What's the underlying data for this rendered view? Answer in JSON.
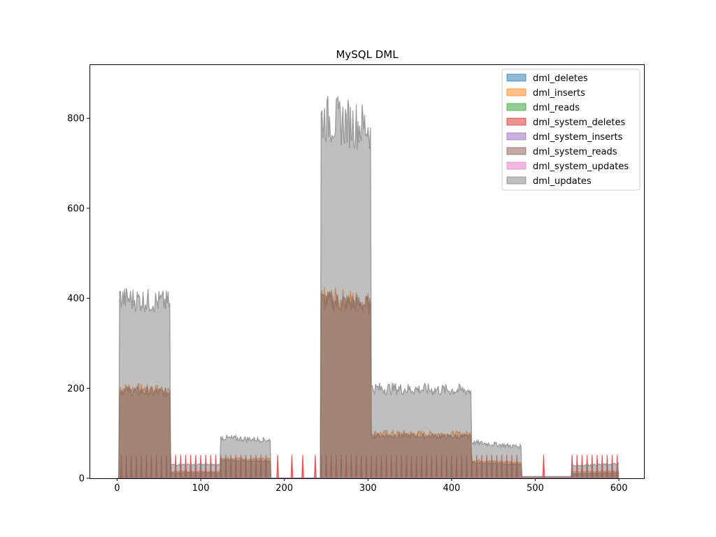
{
  "chart_data": {
    "type": "area",
    "title": "MySQL DML",
    "xlabel": "",
    "ylabel": "",
    "xlim": [
      -33,
      630
    ],
    "ylim": [
      0,
      920
    ],
    "x_ticks": [
      0,
      100,
      200,
      300,
      400,
      500,
      600
    ],
    "y_ticks": [
      0,
      200,
      400,
      600,
      800
    ],
    "grid": false,
    "legend_position": "top-right",
    "legend": [
      "dml_deletes",
      "dml_inserts",
      "dml_reads",
      "dml_system_deletes",
      "dml_system_inserts",
      "dml_system_reads",
      "dml_system_updates",
      "dml_updates"
    ],
    "series_colors": {
      "dml_deletes": "#1f77b4",
      "dml_inserts": "#ff7f0e",
      "dml_reads": "#2ca02c",
      "dml_system_deletes": "#d62728",
      "dml_system_inserts": "#9467bd",
      "dml_system_reads": "#8c564b",
      "dml_system_updates": "#e377c2",
      "dml_updates": "#7f7f7f"
    },
    "series_segments": {
      "dml_updates": [
        [
          0,
          0
        ],
        [
          2,
          0
        ],
        [
          3,
          400
        ],
        [
          63,
          390
        ],
        [
          64,
          30
        ],
        [
          123,
          30
        ],
        [
          124,
          90
        ],
        [
          183,
          85
        ],
        [
          184,
          0
        ],
        [
          243,
          0
        ],
        [
          244,
          800
        ],
        [
          303,
          780
        ],
        [
          304,
          200
        ],
        [
          423,
          195
        ],
        [
          424,
          80
        ],
        [
          483,
          70
        ],
        [
          484,
          4
        ],
        [
          543,
          4
        ],
        [
          544,
          28
        ],
        [
          600,
          32
        ]
      ],
      "dml_inserts": [
        [
          0,
          0
        ],
        [
          2,
          0
        ],
        [
          3,
          200
        ],
        [
          63,
          195
        ],
        [
          64,
          15
        ],
        [
          123,
          15
        ],
        [
          124,
          45
        ],
        [
          183,
          42
        ],
        [
          184,
          0
        ],
        [
          243,
          0
        ],
        [
          244,
          400
        ],
        [
          303,
          390
        ],
        [
          304,
          100
        ],
        [
          423,
          98
        ],
        [
          424,
          40
        ],
        [
          483,
          35
        ],
        [
          484,
          2
        ],
        [
          543,
          2
        ],
        [
          544,
          14
        ],
        [
          600,
          16
        ]
      ],
      "dml_system_reads": [
        [
          0,
          0
        ],
        [
          2,
          0
        ],
        [
          3,
          195
        ],
        [
          63,
          190
        ],
        [
          64,
          12
        ],
        [
          123,
          12
        ],
        [
          124,
          40
        ],
        [
          183,
          38
        ],
        [
          184,
          0
        ],
        [
          243,
          0
        ],
        [
          244,
          395
        ],
        [
          303,
          385
        ],
        [
          304,
          95
        ],
        [
          423,
          92
        ],
        [
          424,
          35
        ],
        [
          483,
          30
        ],
        [
          484,
          0
        ],
        [
          543,
          0
        ],
        [
          544,
          10
        ],
        [
          600,
          12
        ]
      ],
      "dml_system_deletes_spikes": {
        "peak": 52,
        "ranges": [
          [
            5,
            63
          ],
          [
            64,
            183
          ],
          [
            244,
            423
          ],
          [
            424,
            483
          ],
          [
            544,
            600
          ]
        ],
        "period": 6,
        "isolated": [
          192,
          209,
          222,
          237,
          510
        ]
      },
      "dml_system_updates": [
        [
          0,
          0
        ],
        [
          600,
          1
        ]
      ],
      "dml_system_inserts": [
        [
          0,
          0
        ],
        [
          600,
          1
        ]
      ],
      "dml_reads": [
        [
          0,
          0
        ],
        [
          600,
          0
        ]
      ],
      "dml_deletes": [
        [
          0,
          0
        ],
        [
          600,
          0
        ]
      ]
    }
  }
}
